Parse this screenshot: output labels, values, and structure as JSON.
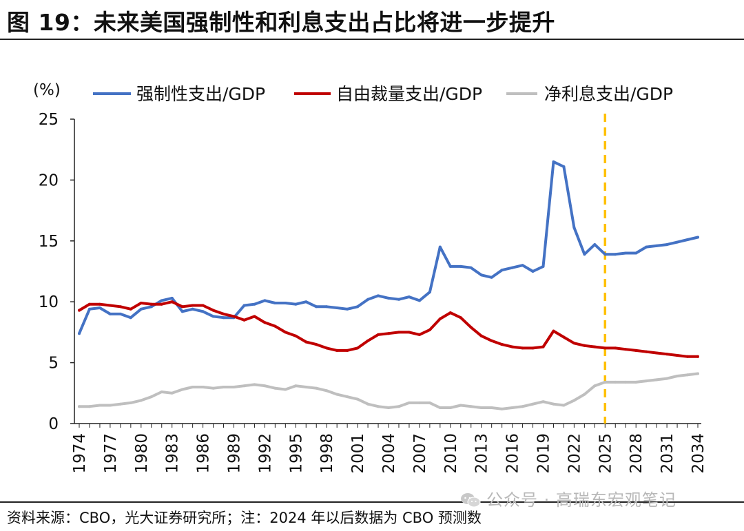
{
  "figure": {
    "title": "图 19：未来美国强制性和利息支出占比将进一步提升",
    "source": "资料来源：CBO，光大证券研究所；注：2024 年以后数据为 CBO 预测数",
    "watermark": "公众号 · 高瑞东宏观笔记",
    "watermark_icon": "wechat-icon"
  },
  "chart_data": {
    "type": "line",
    "unit_label": "(%)",
    "ylim": [
      0,
      25
    ],
    "yticks": [
      0,
      5,
      10,
      15,
      20,
      25
    ],
    "xlim": [
      1974,
      2034
    ],
    "xticks": [
      1974,
      1977,
      1980,
      1983,
      1986,
      1989,
      1992,
      1995,
      1998,
      2001,
      2004,
      2007,
      2010,
      2013,
      2016,
      2019,
      2022,
      2025,
      2028,
      2031,
      2034
    ],
    "grid": false,
    "legend_position": "top",
    "reference_line": {
      "x": 2025,
      "style": "dashed",
      "color": "#FFC000"
    },
    "x": [
      1974,
      1975,
      1976,
      1977,
      1978,
      1979,
      1980,
      1981,
      1982,
      1983,
      1984,
      1985,
      1986,
      1987,
      1988,
      1989,
      1990,
      1991,
      1992,
      1993,
      1994,
      1995,
      1996,
      1997,
      1998,
      1999,
      2000,
      2001,
      2002,
      2003,
      2004,
      2005,
      2006,
      2007,
      2008,
      2009,
      2010,
      2011,
      2012,
      2013,
      2014,
      2015,
      2016,
      2017,
      2018,
      2019,
      2020,
      2021,
      2022,
      2023,
      2024,
      2025,
      2026,
      2027,
      2028,
      2029,
      2030,
      2031,
      2032,
      2033,
      2034
    ],
    "series": [
      {
        "name": "强制性支出/GDP",
        "color": "#4472C4",
        "values": [
          7.4,
          9.4,
          9.5,
          9.0,
          9.0,
          8.7,
          9.4,
          9.6,
          10.1,
          10.3,
          9.2,
          9.4,
          9.2,
          8.8,
          8.7,
          8.7,
          9.7,
          9.8,
          10.1,
          9.9,
          9.9,
          9.8,
          10.0,
          9.6,
          9.6,
          9.5,
          9.4,
          9.6,
          10.2,
          10.5,
          10.3,
          10.2,
          10.4,
          10.1,
          10.8,
          14.5,
          12.9,
          12.9,
          12.8,
          12.2,
          12.0,
          12.6,
          12.8,
          13.0,
          12.5,
          12.9,
          21.5,
          21.1,
          16.1,
          13.9,
          14.7,
          13.9,
          13.9,
          14.0,
          14.0,
          14.5,
          14.6,
          14.7,
          14.9,
          15.1,
          15.3
        ]
      },
      {
        "name": "自由裁量支出/GDP",
        "color": "#C00000",
        "values": [
          9.3,
          9.8,
          9.8,
          9.7,
          9.6,
          9.4,
          9.9,
          9.8,
          9.8,
          10.0,
          9.6,
          9.7,
          9.7,
          9.3,
          9.0,
          8.8,
          8.5,
          8.8,
          8.3,
          8.0,
          7.5,
          7.2,
          6.7,
          6.5,
          6.2,
          6.0,
          6.0,
          6.2,
          6.8,
          7.3,
          7.4,
          7.5,
          7.5,
          7.3,
          7.7,
          8.6,
          9.1,
          8.7,
          7.9,
          7.2,
          6.8,
          6.5,
          6.3,
          6.2,
          6.2,
          6.3,
          7.6,
          7.1,
          6.6,
          6.4,
          6.3,
          6.2,
          6.2,
          6.1,
          6.0,
          5.9,
          5.8,
          5.7,
          5.6,
          5.5,
          5.5
        ]
      },
      {
        "name": "净利息支出/GDP",
        "color": "#BFBFBF",
        "values": [
          1.4,
          1.4,
          1.5,
          1.5,
          1.6,
          1.7,
          1.9,
          2.2,
          2.6,
          2.5,
          2.8,
          3.0,
          3.0,
          2.9,
          3.0,
          3.0,
          3.1,
          3.2,
          3.1,
          2.9,
          2.8,
          3.1,
          3.0,
          2.9,
          2.7,
          2.4,
          2.2,
          2.0,
          1.6,
          1.4,
          1.3,
          1.4,
          1.7,
          1.7,
          1.7,
          1.3,
          1.3,
          1.5,
          1.4,
          1.3,
          1.3,
          1.2,
          1.3,
          1.4,
          1.6,
          1.8,
          1.6,
          1.5,
          1.9,
          2.4,
          3.1,
          3.4,
          3.4,
          3.4,
          3.4,
          3.5,
          3.6,
          3.7,
          3.9,
          4.0,
          4.1
        ]
      }
    ]
  }
}
